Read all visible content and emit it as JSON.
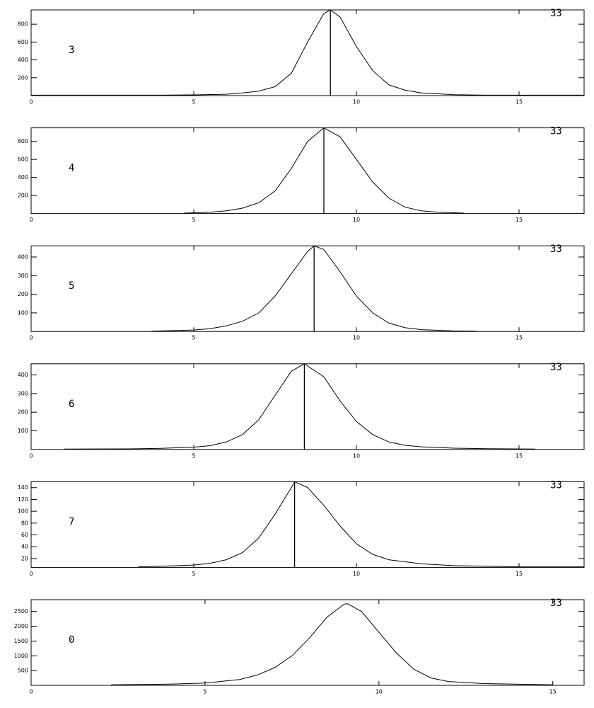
{
  "chart_data": [
    {
      "type": "line",
      "label": "3",
      "corner_text": "33",
      "color": "#000000",
      "vline": 9.2,
      "x": [
        0,
        2,
        4,
        5,
        6,
        6.5,
        7,
        7.5,
        8,
        8.5,
        9,
        9.2,
        9.5,
        10,
        10.5,
        11,
        11.5,
        12,
        13,
        14,
        15,
        16,
        17
      ],
      "values": [
        5,
        5,
        5,
        8,
        15,
        30,
        50,
        100,
        250,
        600,
        920,
        960,
        880,
        550,
        280,
        120,
        60,
        30,
        10,
        5,
        5,
        5,
        5
      ],
      "xlim": [
        0,
        17
      ],
      "xticks": [
        0,
        5,
        10,
        15
      ],
      "ylim": [
        0,
        960
      ],
      "yticks": [
        200,
        400,
        600,
        800
      ]
    },
    {
      "type": "line",
      "label": "4",
      "corner_text": "33",
      "color": "#000000",
      "vline": 9.0,
      "x": [
        4.7,
        5.5,
        6,
        6.5,
        7,
        7.5,
        8,
        8.5,
        9,
        9.5,
        10,
        10.5,
        11,
        11.5,
        12,
        12.5,
        13.3
      ],
      "values": [
        5,
        15,
        30,
        60,
        120,
        250,
        500,
        800,
        950,
        850,
        600,
        350,
        170,
        70,
        30,
        15,
        5
      ],
      "xlim": [
        0,
        17
      ],
      "xticks": [
        0,
        5,
        10,
        15
      ],
      "ylim": [
        0,
        950
      ],
      "yticks": [
        200,
        400,
        600,
        800
      ]
    },
    {
      "type": "line",
      "label": "5",
      "corner_text": "33",
      "color": "#000000",
      "vline": 8.7,
      "x": [
        3.7,
        5,
        5.5,
        6,
        6.5,
        7,
        7.5,
        8,
        8.5,
        8.7,
        9,
        9.5,
        10,
        10.5,
        11,
        11.5,
        12,
        13,
        13.7
      ],
      "values": [
        2,
        8,
        15,
        30,
        55,
        100,
        190,
        310,
        430,
        460,
        440,
        320,
        190,
        100,
        45,
        20,
        10,
        3,
        2
      ],
      "xlim": [
        0,
        17
      ],
      "xticks": [
        0,
        5,
        10,
        15
      ],
      "ylim": [
        0,
        460
      ],
      "yticks": [
        100,
        200,
        300,
        400
      ]
    },
    {
      "type": "line",
      "label": "6",
      "corner_text": "33",
      "color": "#000000",
      "vline": 8.4,
      "x": [
        1,
        3,
        4,
        5,
        5.5,
        6,
        6.5,
        7,
        7.5,
        8,
        8.4,
        9,
        9.5,
        10,
        10.5,
        11,
        11.5,
        12,
        13,
        14,
        15.5
      ],
      "values": [
        2,
        3,
        6,
        12,
        20,
        40,
        80,
        160,
        290,
        420,
        460,
        390,
        260,
        150,
        80,
        40,
        22,
        14,
        7,
        4,
        2
      ],
      "xlim": [
        0,
        17
      ],
      "xticks": [
        0,
        5,
        10,
        15
      ],
      "ylim": [
        0,
        460
      ],
      "yticks": [
        100,
        200,
        300,
        400
      ]
    },
    {
      "type": "line",
      "label": "7",
      "corner_text": "33",
      "color": "#000000",
      "vline": 8.1,
      "x": [
        3.3,
        4,
        5,
        5.5,
        6,
        6.5,
        7,
        7.5,
        8,
        8.1,
        8.5,
        9,
        9.5,
        10,
        10.5,
        11,
        12,
        13,
        15,
        17
      ],
      "values": [
        6,
        7,
        9,
        12,
        18,
        30,
        55,
        95,
        140,
        150,
        140,
        110,
        75,
        45,
        27,
        18,
        11,
        8,
        6,
        6
      ],
      "xlim": [
        0,
        17
      ],
      "xticks": [
        0,
        5,
        10,
        15
      ],
      "ylim": [
        5,
        150
      ],
      "yticks": [
        20,
        40,
        60,
        80,
        100,
        120,
        140
      ]
    },
    {
      "type": "line",
      "label": "0",
      "corner_text": "33",
      "color": "#000000",
      "x": [
        2.3,
        4,
        5,
        6,
        6.5,
        7,
        7.5,
        8,
        8.5,
        9,
        9.1,
        9.5,
        10,
        10.5,
        11,
        11.5,
        12,
        13,
        15
      ],
      "values": [
        20,
        40,
        80,
        200,
        350,
        600,
        1000,
        1600,
        2300,
        2750,
        2760,
        2500,
        1800,
        1100,
        550,
        250,
        130,
        60,
        20
      ],
      "xlim": [
        0,
        15.9
      ],
      "xticks": [
        0,
        5,
        10,
        15
      ],
      "ylim": [
        0,
        2900
      ],
      "yticks": [
        500,
        1000,
        1500,
        2000,
        2500
      ]
    }
  ]
}
